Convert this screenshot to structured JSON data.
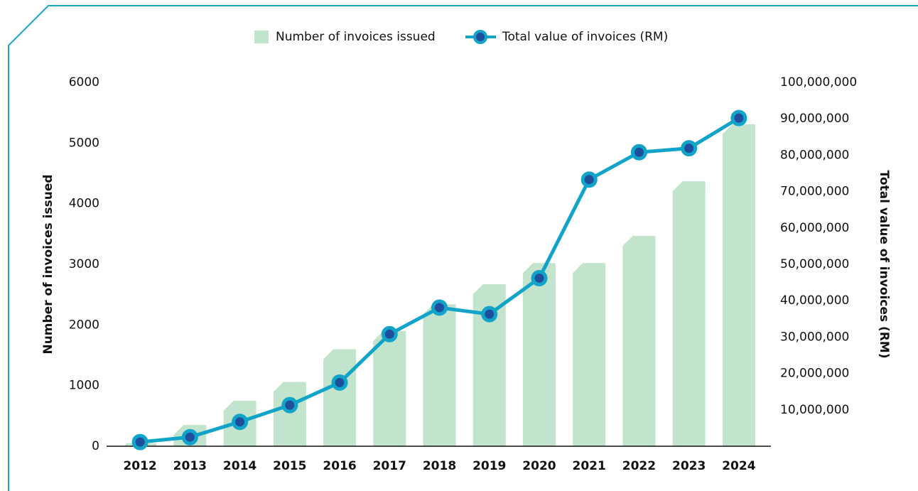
{
  "chart_data": {
    "type": "bar_line",
    "categories": [
      "2012",
      "2013",
      "2014",
      "2015",
      "2016",
      "2017",
      "2018",
      "2019",
      "2020",
      "2021",
      "2022",
      "2023",
      "2024"
    ],
    "series": [
      {
        "name": "Number of invoices issued",
        "type": "bar",
        "color": "#c2e3cc",
        "values": [
          50,
          350,
          750,
          1060,
          1600,
          1900,
          2340,
          2670,
          3020,
          3020,
          3470,
          4370,
          5310
        ]
      },
      {
        "name": "Total value of invoices (RM)",
        "type": "line",
        "axis": "y2",
        "color": "#12a3c9",
        "values": [
          1150000,
          2500000,
          6700000,
          11300000,
          17500000,
          30800000,
          38100000,
          36300000,
          46200000,
          73300000,
          80800000,
          81900000,
          90200000
        ]
      }
    ],
    "ylabel": "Number of invoices issued",
    "y2label": "Total value of invoices (RM)",
    "ylim": [
      0,
      6000
    ],
    "yticks": [
      0,
      1000,
      2000,
      3000,
      4000,
      5000,
      6000
    ],
    "y2lim": [
      0,
      100000000
    ],
    "y2ticks": [
      {
        "value": 10000000,
        "label": "10,000,000"
      },
      {
        "value": 20000000,
        "label": "20,000,000"
      },
      {
        "value": 30000000,
        "label": "30,000,000"
      },
      {
        "value": 40000000,
        "label": "40,000,000"
      },
      {
        "value": 50000000,
        "label": "50,000,000"
      },
      {
        "value": 60000000,
        "label": "60,000,000"
      },
      {
        "value": 70000000,
        "label": "70,000,000"
      },
      {
        "value": 80000000,
        "label": "80,000,000"
      },
      {
        "value": 90000000,
        "label": "90,000,000"
      },
      {
        "value": 100000000,
        "label": "100,000,000"
      }
    ],
    "legend": "top"
  }
}
